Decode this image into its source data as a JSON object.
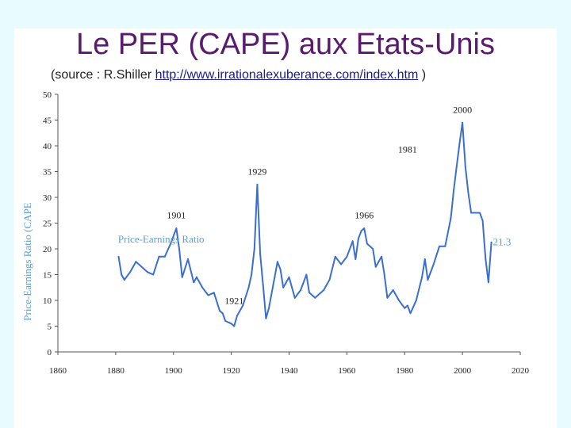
{
  "slide": {
    "title": "Le PER (CAPE) aux Etats-Unis",
    "subtitle_prefix": "(source : R.Shiller ",
    "subtitle_link": "http://www.irrationalexuberance.com/index.htm",
    "subtitle_suffix": " )"
  },
  "colors": {
    "series": "#3a6fd0",
    "title": "#5a1a6e",
    "axis_label": "#5aa0d6"
  },
  "chart_data": {
    "type": "line",
    "ylabel": "Price-Earnings Ratio (CAPE",
    "xlim": [
      1860,
      2020
    ],
    "ylim": [
      0,
      50
    ],
    "x_ticks": [
      1860,
      1880,
      1900,
      1920,
      1940,
      1960,
      1980,
      2000,
      2020
    ],
    "y_ticks": [
      0,
      5,
      10,
      15,
      20,
      25,
      30,
      35,
      40,
      45,
      50
    ],
    "series": [
      {
        "name": "Price-Earnings Ratio",
        "x": [
          1881,
          1882,
          1883,
          1885,
          1887,
          1889,
          1891,
          1893,
          1895,
          1897,
          1899,
          1901,
          1902,
          1903,
          1905,
          1907,
          1908,
          1910,
          1912,
          1914,
          1916,
          1917,
          1918,
          1920,
          1921,
          1922,
          1924,
          1926,
          1927,
          1928,
          1929,
          1930,
          1931,
          1932,
          1933,
          1935,
          1936,
          1937,
          1938,
          1940,
          1942,
          1944,
          1946,
          1947,
          1949,
          1950,
          1952,
          1954,
          1956,
          1958,
          1960,
          1962,
          1963,
          1964,
          1965,
          1966,
          1967,
          1969,
          1970,
          1972,
          1973,
          1974,
          1976,
          1978,
          1980,
          1981,
          1982,
          1984,
          1986,
          1987,
          1988,
          1990,
          1992,
          1994,
          1996,
          1997,
          1998,
          1999,
          2000,
          2001,
          2002,
          2003,
          2004,
          2006,
          2007,
          2008,
          2009,
          2010
        ],
        "values": [
          18.5,
          15.0,
          14.0,
          15.5,
          17.5,
          16.5,
          15.5,
          15.0,
          18.5,
          18.5,
          21.0,
          24.0,
          20.0,
          14.5,
          18.0,
          13.5,
          14.5,
          12.5,
          11.0,
          11.5,
          8.0,
          7.5,
          6.0,
          5.5,
          5.0,
          7.0,
          9.0,
          12.5,
          15.0,
          20.0,
          32.5,
          19.0,
          13.0,
          6.5,
          8.5,
          14.5,
          17.5,
          16.0,
          12.5,
          14.5,
          10.5,
          12.0,
          15.0,
          11.5,
          10.5,
          11.0,
          12.0,
          14.0,
          18.5,
          17.0,
          18.5,
          21.5,
          18.0,
          22.0,
          23.5,
          24.0,
          21.0,
          20.0,
          16.5,
          18.5,
          15.0,
          10.5,
          12.0,
          10.0,
          8.5,
          9.0,
          7.5,
          10.0,
          14.5,
          18.0,
          14.0,
          17.0,
          20.5,
          20.5,
          26.0,
          31.5,
          36.0,
          40.5,
          44.5,
          36.0,
          31.0,
          27.0,
          27.0,
          27.0,
          25.5,
          18.0,
          13.5,
          21.3
        ]
      }
    ],
    "annotations": [
      {
        "text": "1901",
        "x": 1901,
        "y": 25.0
      },
      {
        "text": "1921",
        "x": 1921,
        "y": 5.0
      },
      {
        "text": "1929",
        "x": 1929,
        "y": 33.5
      },
      {
        "text": "1966",
        "x": 1966,
        "y": 25.0
      },
      {
        "text": "1981",
        "x": 1981,
        "y": 39.0
      },
      {
        "text": "2000",
        "x": 2000,
        "y": 45.5
      },
      {
        "text": "21.3",
        "x": 2010,
        "y": 21.3
      },
      {
        "text": "Price-Earnings Ratio",
        "x": 1880,
        "y": 22.0
      }
    ]
  }
}
